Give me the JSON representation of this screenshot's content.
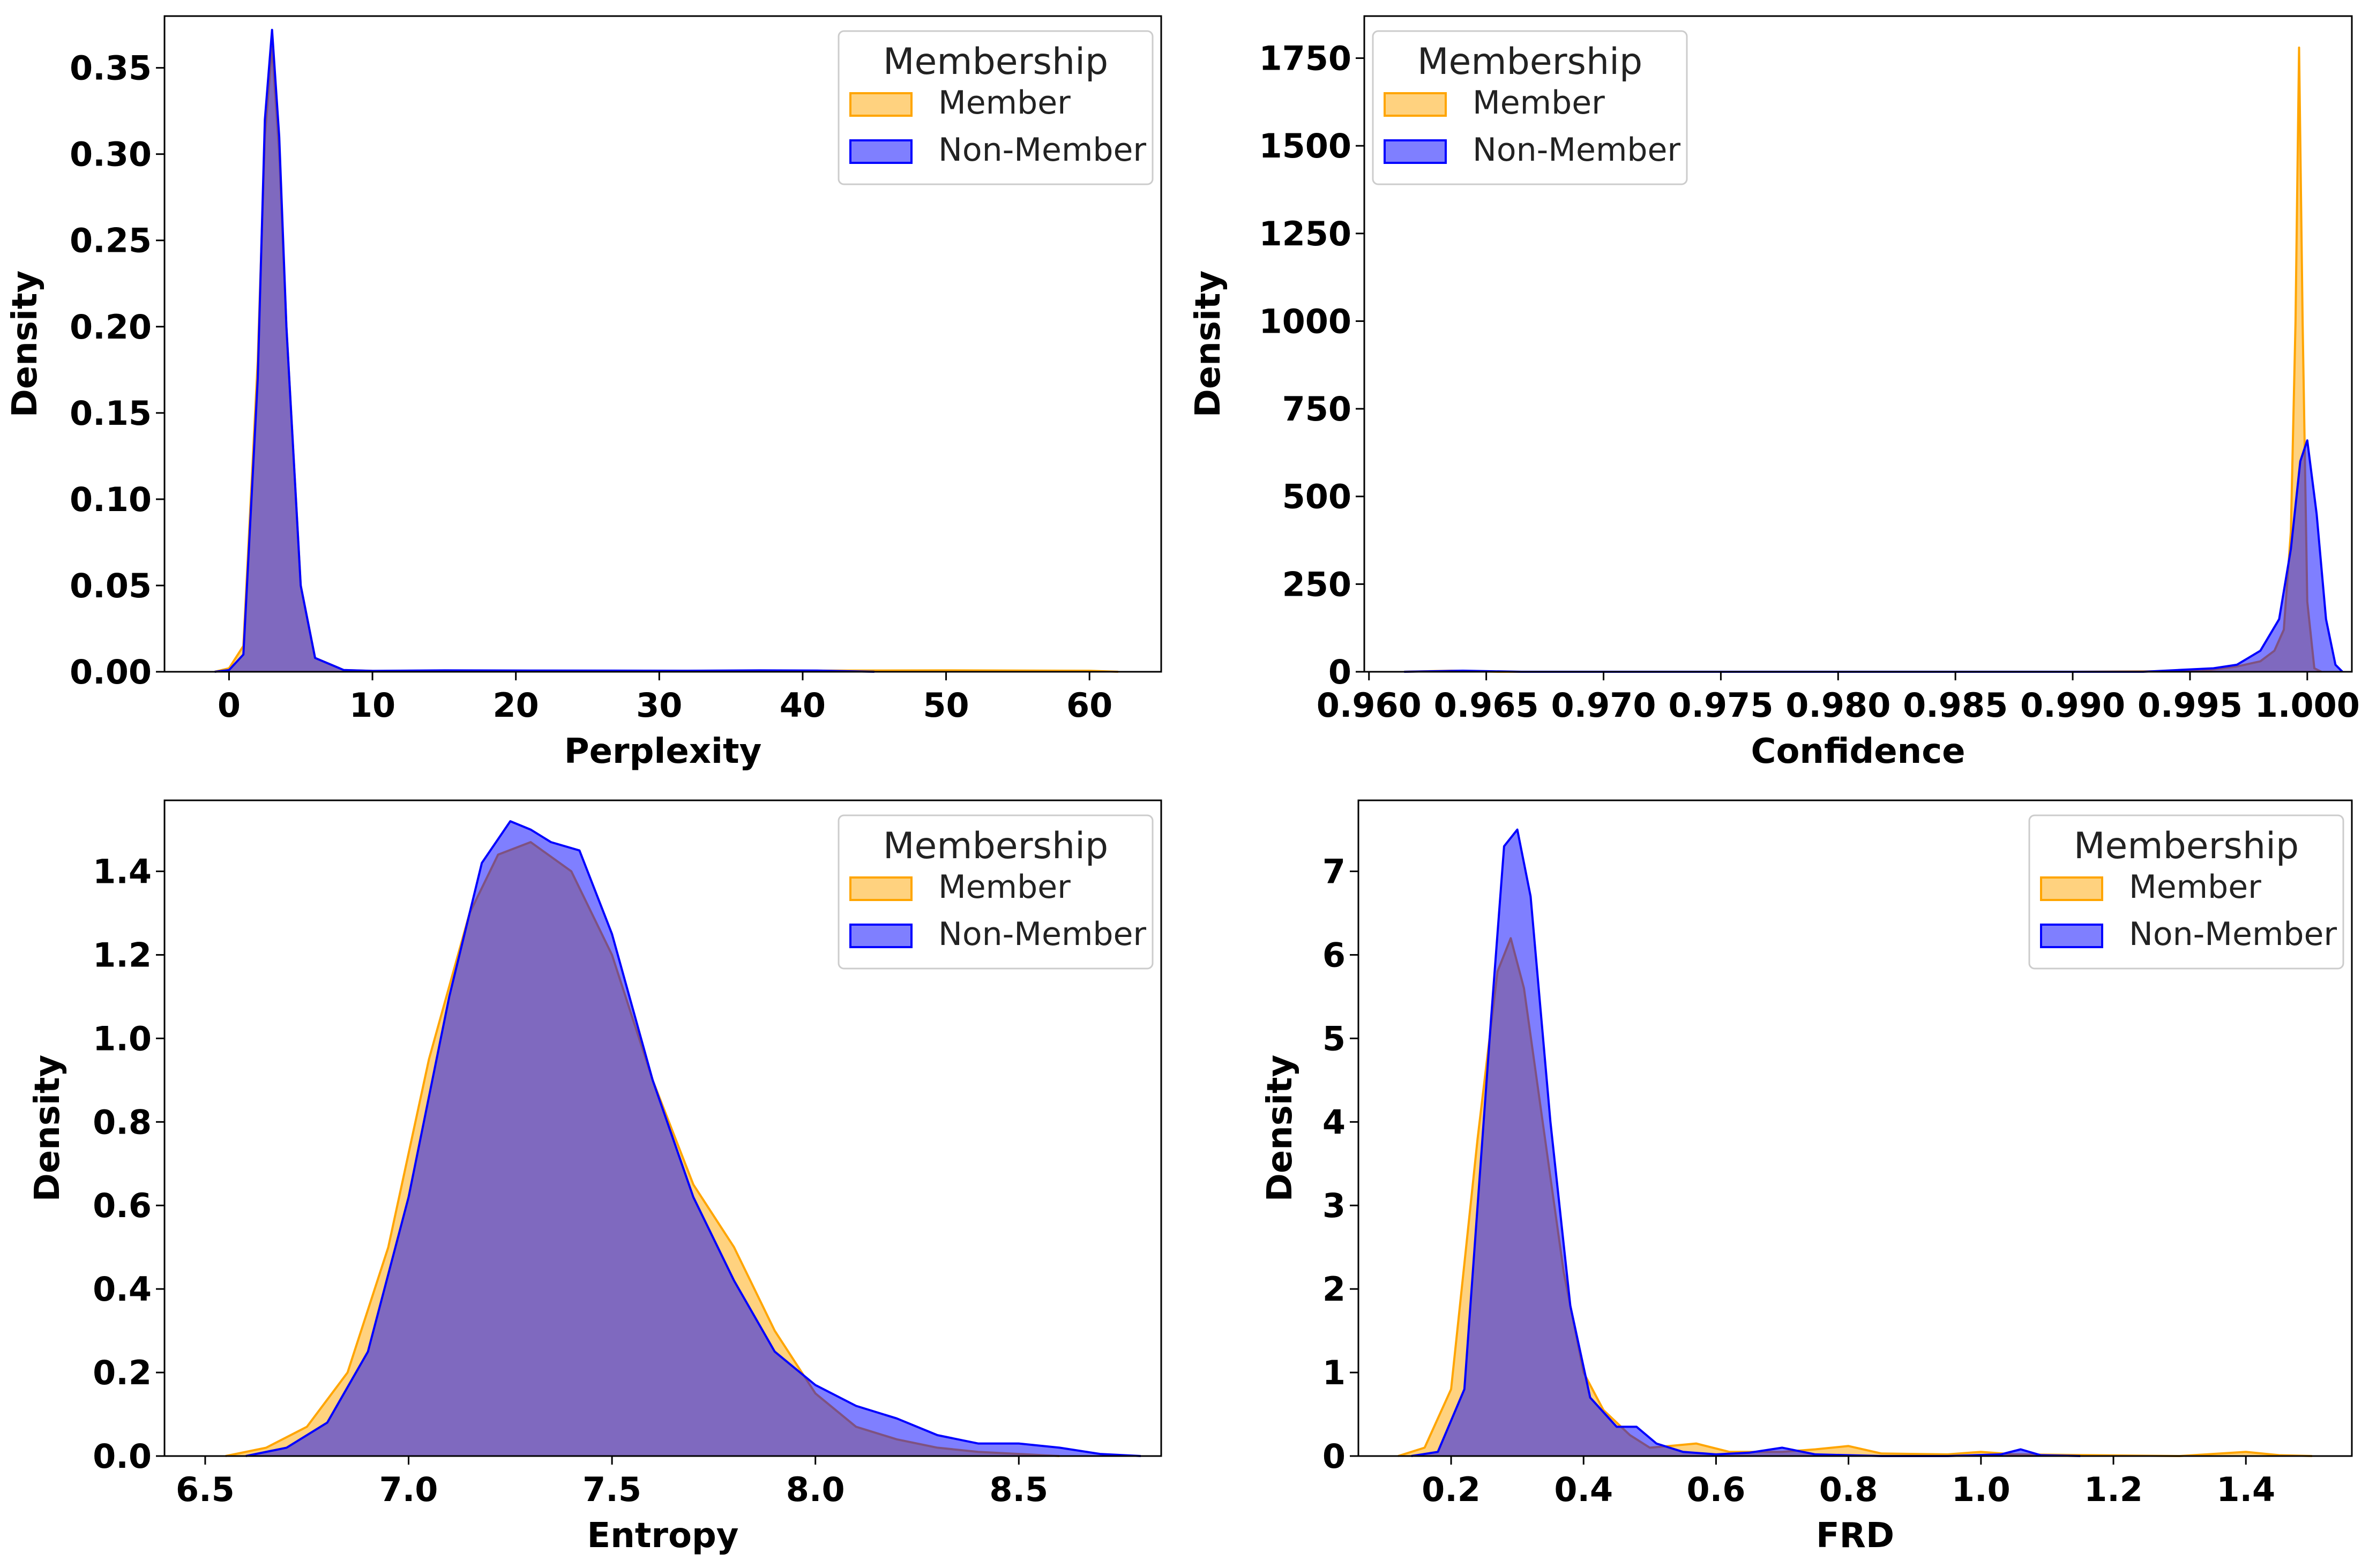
{
  "colors": {
    "member_fill": "#ffa500",
    "member_edge": "#ffa500",
    "nonmember_fill": "#0000ff",
    "nonmember_edge": "#0000ff",
    "fill_opacity": 0.5
  },
  "legend": {
    "title": "Membership",
    "entries": [
      "Member",
      "Non-Member"
    ],
    "placement": "upper-right"
  },
  "chart_data": [
    {
      "type": "area",
      "subtype": "kde",
      "xlabel": "Perplexity",
      "ylabel": "Density",
      "xlim": [
        -4.5,
        65
      ],
      "ylim": [
        0,
        0.38
      ],
      "xticks": [
        0,
        10,
        20,
        30,
        40,
        50,
        60
      ],
      "xtick_labels": [
        "0",
        "10",
        "20",
        "30",
        "40",
        "50",
        "60"
      ],
      "yticks": [
        0,
        0.05,
        0.1,
        0.15,
        0.2,
        0.25,
        0.3,
        0.35
      ],
      "ytick_labels": [
        "0.00",
        "0.05",
        "0.10",
        "0.15",
        "0.20",
        "0.25",
        "0.30",
        "0.35"
      ],
      "series": [
        {
          "name": "Member",
          "x": [
            -1,
            0,
            1,
            2,
            2.5,
            3,
            3.5,
            4,
            5,
            6,
            8,
            10,
            20,
            50,
            60,
            62
          ],
          "y": [
            0,
            0.002,
            0.015,
            0.18,
            0.31,
            0.362,
            0.3,
            0.2,
            0.05,
            0.008,
            0.001,
            0.0005,
            0.0003,
            0.0008,
            0.0006,
            0
          ]
        },
        {
          "name": "Non-Member",
          "x": [
            -1,
            0,
            1,
            2,
            2.5,
            3,
            3.5,
            4,
            5,
            6,
            8,
            10,
            15,
            21,
            32,
            37,
            41,
            45
          ],
          "y": [
            0,
            0.001,
            0.01,
            0.17,
            0.32,
            0.372,
            0.31,
            0.2,
            0.05,
            0.008,
            0.001,
            0.0005,
            0.0008,
            0.0007,
            0.0006,
            0.0008,
            0.0007,
            0
          ]
        }
      ]
    },
    {
      "type": "area",
      "subtype": "kde",
      "xlabel": "Confidence",
      "ylabel": "Density",
      "xlim": [
        0.9598,
        1.0019
      ],
      "ylim": [
        0,
        1870
      ],
      "xticks": [
        0.96,
        0.965,
        0.97,
        0.975,
        0.98,
        0.985,
        0.99,
        0.995,
        1.0
      ],
      "xtick_labels": [
        "0.960",
        "0.965",
        "0.970",
        "0.975",
        "0.980",
        "0.985",
        "0.990",
        "0.995",
        "1.000"
      ],
      "yticks": [
        0,
        250,
        500,
        750,
        1000,
        1250,
        1500,
        1750
      ],
      "ytick_labels": [
        "0",
        "250",
        "500",
        "750",
        "1000",
        "1250",
        "1500",
        "1750"
      ],
      "series": [
        {
          "name": "Member",
          "x": [
            0.9615,
            0.9635,
            0.9655,
            0.98,
            0.99,
            0.9955,
            0.997,
            0.998,
            0.9986,
            0.999,
            0.9993,
            0.9995,
            0.99965,
            0.9998,
            1.0,
            1.0003,
            1.0006
          ],
          "y": [
            0,
            3,
            0,
            0,
            0,
            2,
            15,
            30,
            60,
            120,
            400,
            1000,
            1780,
            1000,
            200,
            10,
            0
          ]
        },
        {
          "name": "Non-Member",
          "x": [
            0.9615,
            0.964,
            0.9665,
            0.985,
            0.993,
            0.996,
            0.997,
            0.998,
            0.9988,
            0.9993,
            0.9997,
            1.0,
            1.0004,
            1.0008,
            1.0012,
            1.0015
          ],
          "y": [
            0,
            3,
            0,
            0,
            0,
            10,
            20,
            60,
            150,
            350,
            600,
            660,
            450,
            150,
            20,
            0
          ]
        }
      ]
    },
    {
      "type": "area",
      "subtype": "kde",
      "xlabel": "Entropy",
      "ylabel": "Density",
      "xlim": [
        6.4,
        8.85
      ],
      "ylim": [
        0,
        1.57
      ],
      "xticks": [
        6.5,
        7.0,
        7.5,
        8.0,
        8.5
      ],
      "xtick_labels": [
        "6.5",
        "7.0",
        "7.5",
        "8.0",
        "8.5"
      ],
      "yticks": [
        0,
        0.2,
        0.4,
        0.6,
        0.8,
        1.0,
        1.2,
        1.4
      ],
      "ytick_labels": [
        "0.0",
        "0.2",
        "0.4",
        "0.6",
        "0.8",
        "1.0",
        "1.2",
        "1.4"
      ],
      "series": [
        {
          "name": "Member",
          "x": [
            6.55,
            6.65,
            6.75,
            6.85,
            6.95,
            7.05,
            7.15,
            7.22,
            7.3,
            7.4,
            7.5,
            7.6,
            7.7,
            7.8,
            7.9,
            8.0,
            8.1,
            8.2,
            8.3,
            8.4,
            8.5,
            8.6
          ],
          "y": [
            0,
            0.02,
            0.07,
            0.2,
            0.5,
            0.95,
            1.3,
            1.44,
            1.47,
            1.4,
            1.2,
            0.9,
            0.65,
            0.5,
            0.3,
            0.15,
            0.07,
            0.04,
            0.02,
            0.01,
            0.005,
            0
          ]
        },
        {
          "name": "Non-Member",
          "x": [
            6.6,
            6.7,
            6.8,
            6.9,
            7.0,
            7.1,
            7.18,
            7.25,
            7.3,
            7.35,
            7.42,
            7.5,
            7.6,
            7.7,
            7.8,
            7.9,
            8.0,
            8.1,
            8.2,
            8.3,
            8.4,
            8.5,
            8.6,
            8.7,
            8.8
          ],
          "y": [
            0,
            0.02,
            0.08,
            0.25,
            0.62,
            1.1,
            1.42,
            1.52,
            1.5,
            1.47,
            1.45,
            1.25,
            0.9,
            0.62,
            0.42,
            0.25,
            0.17,
            0.12,
            0.09,
            0.05,
            0.03,
            0.03,
            0.02,
            0.005,
            0
          ]
        }
      ]
    },
    {
      "type": "area",
      "subtype": "kde",
      "xlabel": "FRD",
      "ylabel": "Density",
      "xlim": [
        0.06,
        1.56
      ],
      "ylim": [
        0,
        7.85
      ],
      "xticks": [
        0.2,
        0.4,
        0.6,
        0.8,
        1.0,
        1.2,
        1.4
      ],
      "xtick_labels": [
        "0.2",
        "0.4",
        "0.6",
        "0.8",
        "1.0",
        "1.2",
        "1.4"
      ],
      "yticks": [
        0,
        1,
        2,
        3,
        4,
        5,
        6,
        7
      ],
      "ytick_labels": [
        "0",
        "1",
        "2",
        "3",
        "4",
        "5",
        "6",
        "7"
      ],
      "series": [
        {
          "name": "Member",
          "x": [
            0.12,
            0.16,
            0.2,
            0.24,
            0.27,
            0.29,
            0.31,
            0.34,
            0.37,
            0.4,
            0.43,
            0.47,
            0.5,
            0.53,
            0.57,
            0.62,
            0.7,
            0.75,
            0.8,
            0.85,
            0.95,
            1.0,
            1.05,
            1.3,
            1.4,
            1.45,
            1.5
          ],
          "y": [
            0,
            0.1,
            0.8,
            3.8,
            5.8,
            6.2,
            5.6,
            3.9,
            2.2,
            1.0,
            0.55,
            0.25,
            0.1,
            0.12,
            0.15,
            0.05,
            0.05,
            0.08,
            0.12,
            0.03,
            0.02,
            0.05,
            0.02,
            0,
            0.05,
            0.01,
            0
          ]
        },
        {
          "name": "Non-Member",
          "x": [
            0.14,
            0.18,
            0.22,
            0.26,
            0.28,
            0.3,
            0.32,
            0.35,
            0.38,
            0.41,
            0.45,
            0.48,
            0.51,
            0.55,
            0.6,
            0.65,
            0.7,
            0.75,
            0.85,
            0.95,
            1.03,
            1.06,
            1.09,
            1.15
          ],
          "y": [
            0,
            0.05,
            0.8,
            5.2,
            7.3,
            7.5,
            6.7,
            4.0,
            1.8,
            0.7,
            0.35,
            0.35,
            0.15,
            0.05,
            0.02,
            0.04,
            0.1,
            0.02,
            0,
            0,
            0.02,
            0.08,
            0.01,
            0
          ]
        }
      ]
    }
  ]
}
